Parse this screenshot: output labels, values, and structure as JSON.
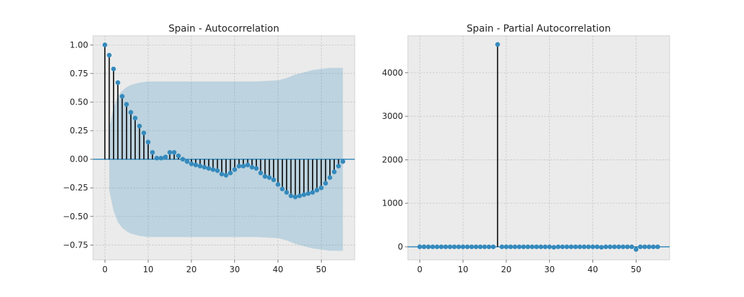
{
  "colors": {
    "marker": "#348abd",
    "stem": "#000000",
    "confidence_band": "#348abd",
    "panel_background": "#ebebeb",
    "grid": "#bdbdbd"
  },
  "chart_data": [
    {
      "type": "stem",
      "title": "Spain - Autocorrelation",
      "xlabel": "",
      "ylabel": "",
      "xlim": [
        -2.75,
        57.75
      ],
      "ylim": [
        -0.88,
        1.08
      ],
      "xticks": [
        0,
        10,
        20,
        30,
        40,
        50
      ],
      "yticks": [
        -0.75,
        -0.5,
        -0.25,
        0.0,
        0.25,
        0.5,
        0.75,
        1.0
      ],
      "ytick_labels": [
        "−0.75",
        "−0.50",
        "−0.25",
        "0.00",
        "0.25",
        "0.50",
        "0.75",
        "1.00"
      ],
      "grid": true,
      "lags": [
        0,
        1,
        2,
        3,
        4,
        5,
        6,
        7,
        8,
        9,
        10,
        11,
        12,
        13,
        14,
        15,
        16,
        17,
        18,
        19,
        20,
        21,
        22,
        23,
        24,
        25,
        26,
        27,
        28,
        29,
        30,
        31,
        32,
        33,
        34,
        35,
        36,
        37,
        38,
        39,
        40,
        41,
        42,
        43,
        44,
        45,
        46,
        47,
        48,
        49,
        50,
        51,
        52,
        53,
        54,
        55
      ],
      "values": [
        1.0,
        0.91,
        0.79,
        0.67,
        0.55,
        0.48,
        0.41,
        0.36,
        0.29,
        0.23,
        0.15,
        0.06,
        0.01,
        0.01,
        0.02,
        0.06,
        0.06,
        0.03,
        0.0,
        -0.02,
        -0.04,
        -0.05,
        -0.06,
        -0.07,
        -0.08,
        -0.09,
        -0.1,
        -0.13,
        -0.14,
        -0.12,
        -0.09,
        -0.06,
        -0.06,
        -0.05,
        -0.07,
        -0.08,
        -0.12,
        -0.15,
        -0.16,
        -0.18,
        -0.22,
        -0.26,
        -0.29,
        -0.32,
        -0.33,
        -0.32,
        -0.31,
        -0.3,
        -0.29,
        -0.27,
        -0.25,
        -0.21,
        -0.16,
        -0.11,
        -0.06,
        -0.02
      ],
      "confidence_band": {
        "lags": [
          1,
          2,
          3,
          4,
          5,
          6,
          8,
          10,
          12,
          15,
          20,
          25,
          30,
          35,
          40,
          42,
          44,
          46,
          48,
          50,
          52,
          55
        ],
        "upper": [
          0.27,
          0.45,
          0.55,
          0.6,
          0.63,
          0.65,
          0.67,
          0.68,
          0.68,
          0.68,
          0.68,
          0.68,
          0.68,
          0.68,
          0.69,
          0.71,
          0.74,
          0.76,
          0.78,
          0.79,
          0.8,
          0.8
        ]
      }
    },
    {
      "type": "stem",
      "title": "Spain - Partial Autocorrelation",
      "xlabel": "",
      "ylabel": "",
      "xlim": [
        -2.75,
        57.75
      ],
      "ylim": [
        -300,
        4850
      ],
      "xticks": [
        0,
        10,
        20,
        30,
        40,
        50
      ],
      "yticks": [
        0,
        1000,
        2000,
        3000,
        4000
      ],
      "ytick_labels": [
        "0",
        "1000",
        "2000",
        "3000",
        "4000"
      ],
      "grid": true,
      "lags": [
        0,
        1,
        2,
        3,
        4,
        5,
        6,
        7,
        8,
        9,
        10,
        11,
        12,
        13,
        14,
        15,
        16,
        17,
        18,
        19,
        20,
        21,
        22,
        23,
        24,
        25,
        26,
        27,
        28,
        29,
        30,
        31,
        32,
        33,
        34,
        35,
        36,
        37,
        38,
        39,
        40,
        41,
        42,
        43,
        44,
        45,
        46,
        47,
        48,
        49,
        50,
        51,
        52,
        53,
        54,
        55
      ],
      "values": [
        1,
        1,
        0,
        0,
        0,
        0,
        0,
        0,
        0,
        0,
        0,
        0,
        0,
        0,
        0,
        0,
        0,
        0,
        4650,
        0,
        0,
        0,
        0,
        0,
        0,
        0,
        0,
        0,
        0,
        0,
        0,
        -10,
        0,
        0,
        0,
        0,
        0,
        0,
        0,
        0,
        0,
        0,
        -10,
        0,
        0,
        0,
        0,
        0,
        0,
        0,
        -60,
        0,
        0,
        0,
        0,
        0
      ]
    }
  ]
}
